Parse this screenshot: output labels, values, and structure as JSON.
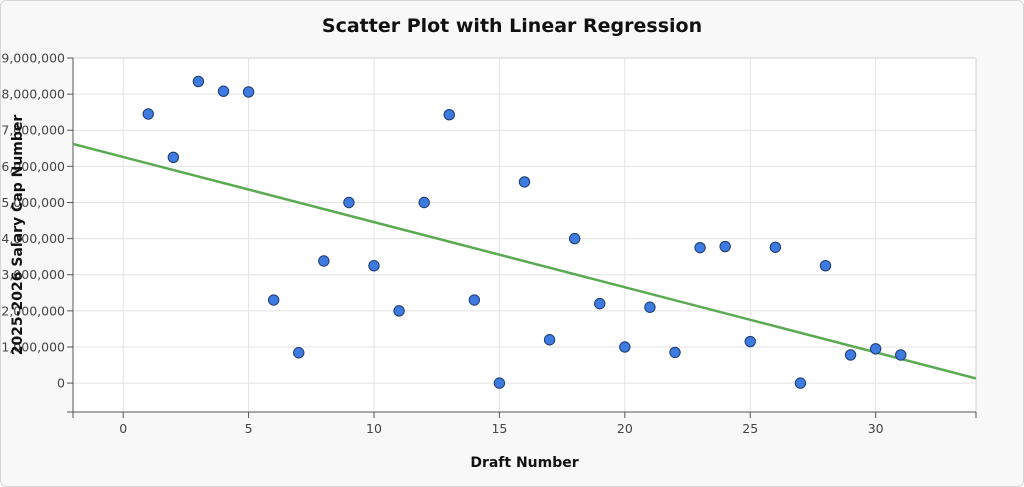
{
  "chart_data": {
    "type": "scatter",
    "title": "Scatter Plot with Linear Regression",
    "xlabel": "Draft Number",
    "ylabel": "2025-2026 Salary Cap Number",
    "xlim": [
      -2,
      34
    ],
    "ylim": [
      -800000,
      9000000
    ],
    "x_ticks": [
      0,
      5,
      10,
      15,
      20,
      25,
      30
    ],
    "y_ticks": [
      0,
      1000000,
      2000000,
      3000000,
      4000000,
      5000000,
      6000000,
      7000000,
      8000000,
      9000000
    ],
    "y_tick_labels": [
      "0",
      "1,000,000",
      "2,000,000",
      "3,000,000",
      "4,000,000",
      "5,000,000",
      "6,000,000",
      "7,000,000",
      "8,000,000",
      "9,000,000"
    ],
    "grid": true,
    "points": [
      {
        "x": 1,
        "y": 7450000
      },
      {
        "x": 2,
        "y": 6250000
      },
      {
        "x": 3,
        "y": 8350000
      },
      {
        "x": 4,
        "y": 8080000
      },
      {
        "x": 5,
        "y": 8060000
      },
      {
        "x": 6,
        "y": 2300000
      },
      {
        "x": 7,
        "y": 840000
      },
      {
        "x": 8,
        "y": 3380000
      },
      {
        "x": 9,
        "y": 5000000
      },
      {
        "x": 10,
        "y": 3250000
      },
      {
        "x": 11,
        "y": 2000000
      },
      {
        "x": 12,
        "y": 5000000
      },
      {
        "x": 13,
        "y": 7430000
      },
      {
        "x": 14,
        "y": 2300000
      },
      {
        "x": 15,
        "y": 0
      },
      {
        "x": 16,
        "y": 5570000
      },
      {
        "x": 17,
        "y": 1200000
      },
      {
        "x": 18,
        "y": 4000000
      },
      {
        "x": 19,
        "y": 2200000
      },
      {
        "x": 20,
        "y": 1000000
      },
      {
        "x": 21,
        "y": 2100000
      },
      {
        "x": 22,
        "y": 850000
      },
      {
        "x": 23,
        "y": 3750000
      },
      {
        "x": 24,
        "y": 3780000
      },
      {
        "x": 25,
        "y": 1150000
      },
      {
        "x": 26,
        "y": 3760000
      },
      {
        "x": 27,
        "y": 0
      },
      {
        "x": 28,
        "y": 3250000
      },
      {
        "x": 29,
        "y": 780000
      },
      {
        "x": 30,
        "y": 950000
      },
      {
        "x": 31,
        "y": 780000
      }
    ],
    "regression_line": {
      "points": [
        {
          "x": -2,
          "y": 6620000
        },
        {
          "x": 34,
          "y": 130000
        }
      ]
    },
    "colors": {
      "point_fill": "#3d7be0",
      "point_stroke": "#1e3a6e",
      "line": "#5aaa52",
      "grid": "#e3e3e3",
      "plot_bg": "#ffffff"
    }
  }
}
